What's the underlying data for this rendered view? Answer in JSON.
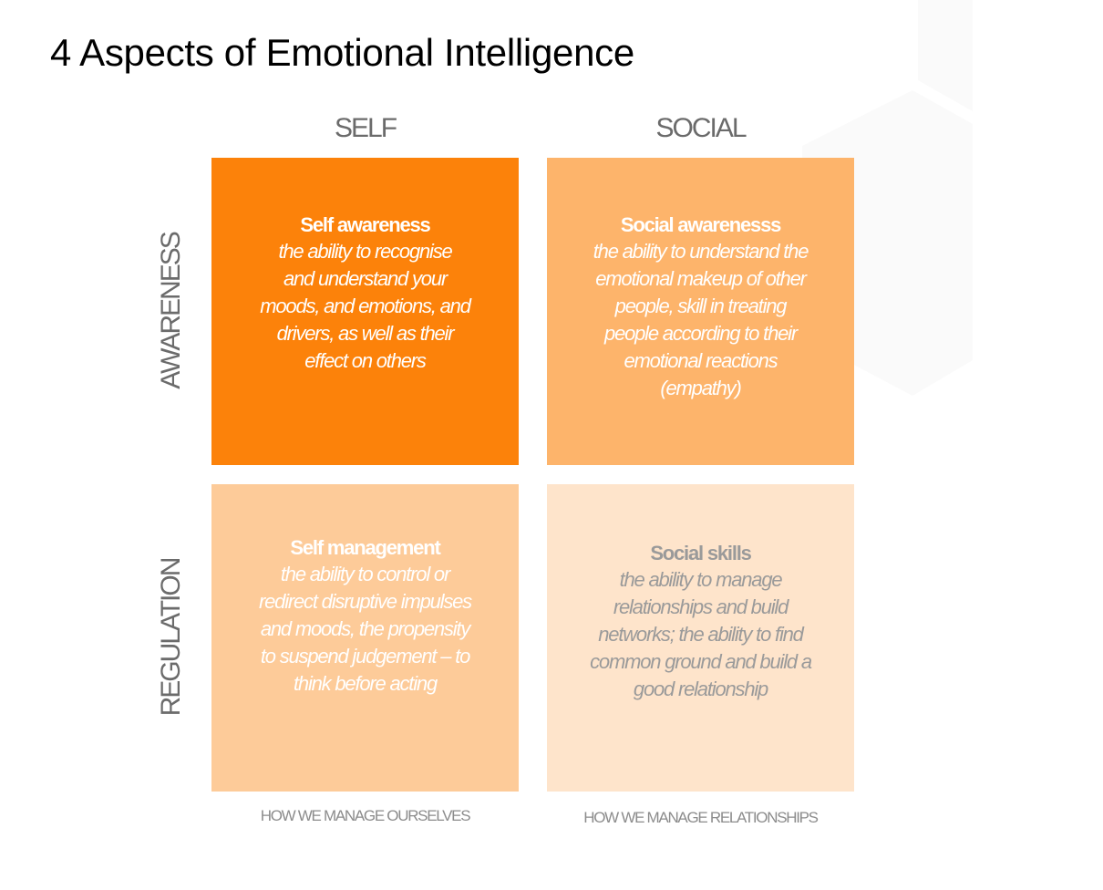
{
  "title": "4 Aspects of Emotional Intelligence",
  "columns": [
    "SELF",
    "SOCIAL"
  ],
  "rows": [
    "AWARENESS",
    "REGULATION"
  ],
  "footers": [
    "HOW WE MANAGE OURSELVES",
    "HOW WE MANAGE RELATIONSHIPS"
  ],
  "quadrants": [
    {
      "heading": "Self awareness",
      "color": "#fc820a",
      "text_color": "#ffffff",
      "lines": [
        "the ability to recognise",
        "and understand your",
        "moods, and emotions, and",
        "drivers, as well as their",
        "effect on others"
      ]
    },
    {
      "heading": "Social awarenesss",
      "color": "#fdb46b",
      "text_color": "#ffffff",
      "lines": [
        "the ability to understand the",
        "emotional makeup of other",
        "people, skill in treating",
        "people according to their",
        "emotional reactions",
        "(empathy)"
      ]
    },
    {
      "heading": "Self management",
      "color": "#fdcb99",
      "text_color": "#ffffff",
      "lines": [
        "the ability to control or",
        "redirect disruptive impulses",
        "and moods, the propensity",
        "to suspend judgement – to",
        "think before acting"
      ]
    },
    {
      "heading": "Social skills",
      "color": "#fee4cb",
      "text_color": "#9a9a9a",
      "lines": [
        "the ability to manage",
        "relationships and build",
        "networks; the ability to find",
        "common ground and build a",
        "good relationship"
      ]
    }
  ]
}
